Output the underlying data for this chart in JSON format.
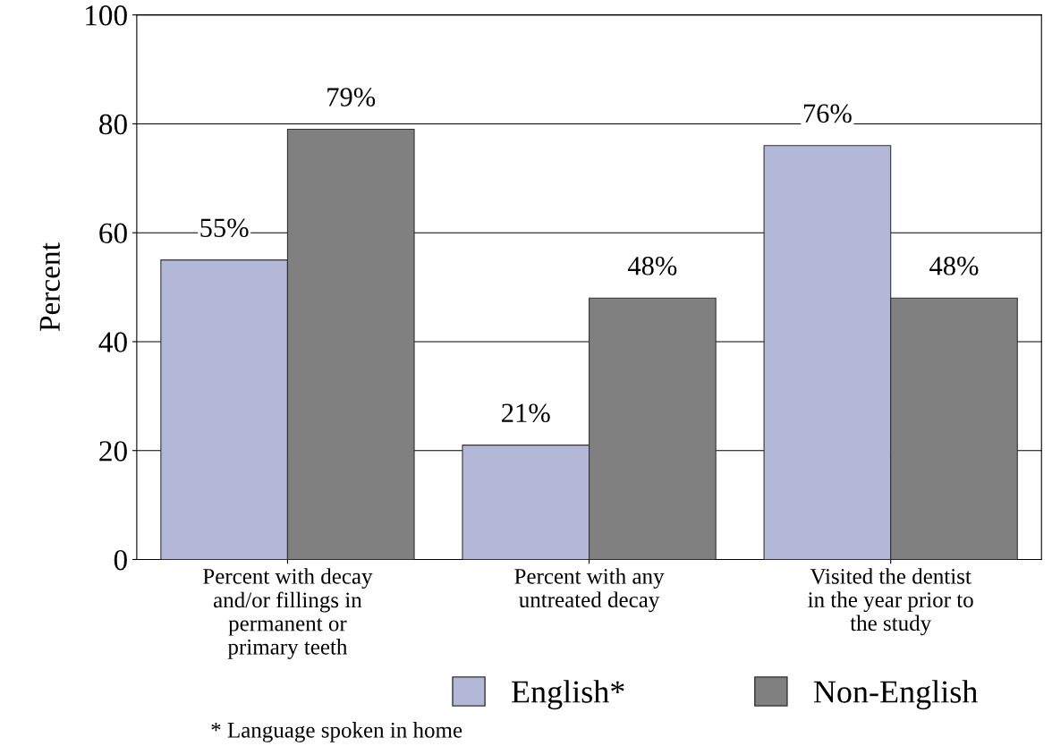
{
  "chart_data": {
    "type": "bar",
    "ylabel": "Percent",
    "categories": [
      "Percent with decay\nand/or fillings in\npermanent or\nprimary teeth",
      "Percent with any\nuntreated decay",
      "Visited the dentist\nin the year prior to\nthe study"
    ],
    "series": [
      {
        "name": "English*",
        "color": "#b4b8d8",
        "values": [
          55,
          21,
          76
        ],
        "value_labels": [
          "55%",
          "21%",
          "76%"
        ]
      },
      {
        "name": "Non-English",
        "color": "#808080",
        "values": [
          79,
          48,
          48
        ],
        "value_labels": [
          "79%",
          "48%",
          "48%"
        ]
      }
    ],
    "ylim": [
      0,
      100
    ],
    "yticks": [
      0,
      20,
      40,
      60,
      80,
      100
    ],
    "grid": "y",
    "legend": "bottom",
    "annotations": [
      "* Language spoken in home"
    ]
  }
}
